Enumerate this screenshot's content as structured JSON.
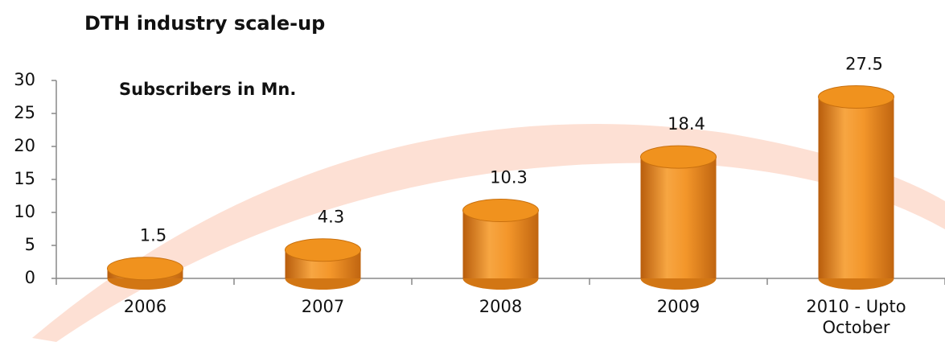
{
  "chart_data": {
    "type": "bar",
    "title": "DTH industry scale-up",
    "subtitle": "Subscribers in Mn.",
    "categories": [
      "2006",
      "2007",
      "2008",
      "2009",
      "2010 - Upto October"
    ],
    "values": [
      1.5,
      4.3,
      10.3,
      18.4,
      27.5
    ],
    "color": "#f0921e",
    "ylim": [
      0,
      30
    ],
    "yticks": [
      0,
      5,
      10,
      15,
      20,
      25,
      30
    ],
    "grid": false
  }
}
